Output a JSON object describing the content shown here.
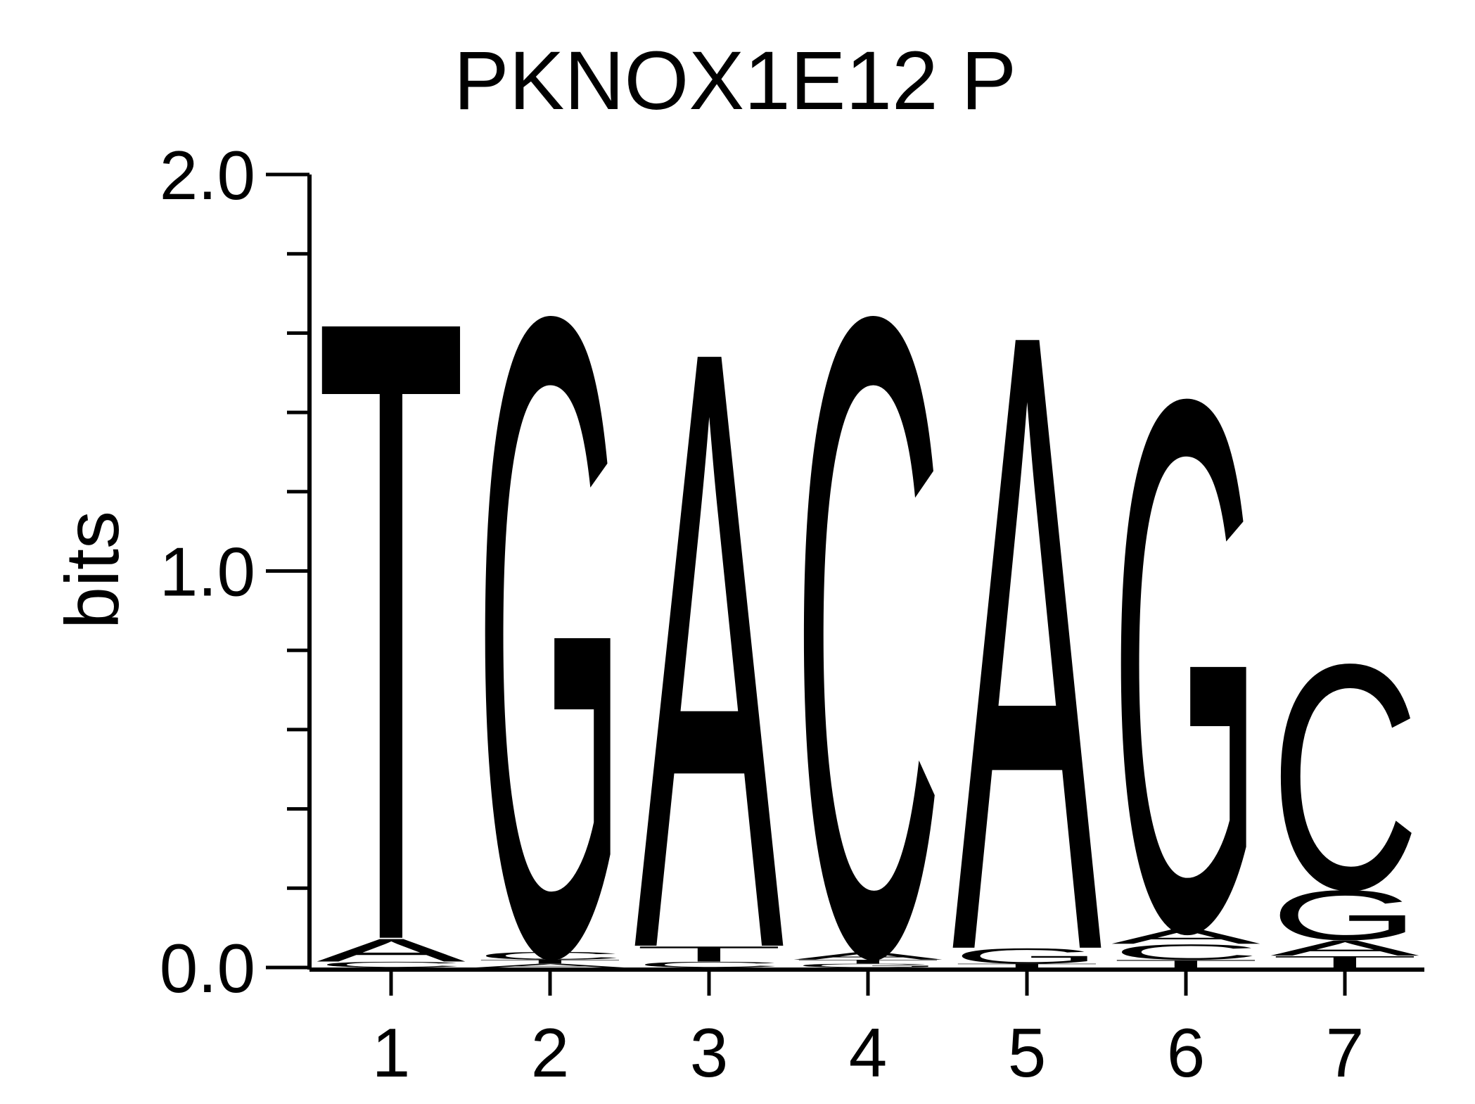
{
  "chart_data": {
    "type": "sequence-logo",
    "title": "PKNOX1E12 P",
    "ylabel": "bits",
    "xlabel": "",
    "ylim": [
      0,
      2
    ],
    "yticks_major": [
      "0.0",
      "1.0",
      "2.0"
    ],
    "ytick_major_values": [
      0,
      1,
      2
    ],
    "ytick_minor_step": 0.2,
    "positions": [
      "1",
      "2",
      "3",
      "4",
      "5",
      "6",
      "7"
    ],
    "colors": {
      "A": "#008000",
      "C": "#0000ff",
      "G": "#ffa500",
      "T": "#ff0000"
    },
    "stacks": [
      {
        "position": "1",
        "letters": [
          {
            "base": "C",
            "bits": 0.015
          },
          {
            "base": "A",
            "bits": 0.06
          },
          {
            "base": "T",
            "bits": 1.63
          }
        ]
      },
      {
        "position": "2",
        "letters": [
          {
            "base": "A",
            "bits": 0.01
          },
          {
            "base": "T",
            "bits": 0.01
          },
          {
            "base": "C",
            "bits": 0.02
          },
          {
            "base": "G",
            "bits": 1.67
          }
        ]
      },
      {
        "position": "3",
        "letters": [
          {
            "base": "C",
            "bits": 0.015
          },
          {
            "base": "T",
            "bits": 0.04
          },
          {
            "base": "A",
            "bits": 1.57
          }
        ]
      },
      {
        "position": "4",
        "letters": [
          {
            "base": "G",
            "bits": 0.01
          },
          {
            "base": "T",
            "bits": 0.01
          },
          {
            "base": "A",
            "bits": 0.02
          },
          {
            "base": "C",
            "bits": 1.67
          }
        ]
      },
      {
        "position": "5",
        "letters": [
          {
            "base": "T",
            "bits": 0.01
          },
          {
            "base": "G",
            "bits": 0.04
          },
          {
            "base": "A",
            "bits": 1.62
          }
        ]
      },
      {
        "position": "6",
        "letters": [
          {
            "base": "T",
            "bits": 0.02
          },
          {
            "base": "C",
            "bits": 0.04
          },
          {
            "base": "A",
            "bits": 0.04
          },
          {
            "base": "G",
            "bits": 1.39
          }
        ]
      },
      {
        "position": "7",
        "letters": [
          {
            "base": "T",
            "bits": 0.03
          },
          {
            "base": "A",
            "bits": 0.04
          },
          {
            "base": "G",
            "bits": 0.13
          },
          {
            "base": "C",
            "bits": 0.59
          }
        ]
      }
    ]
  }
}
